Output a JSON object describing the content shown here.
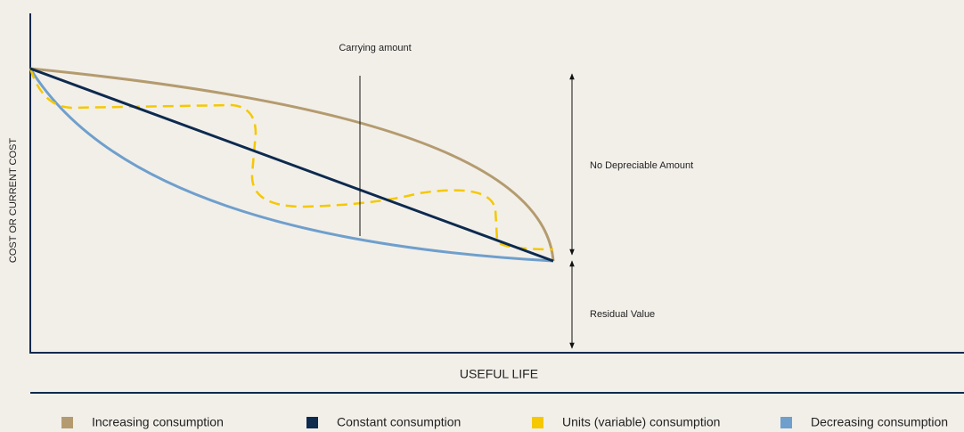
{
  "axes": {
    "y_label": "COST OR CURRENT COST",
    "x_label": "USEFUL LIFE"
  },
  "annotations": {
    "carrying": "Carrying amount",
    "depreciable": "No Depreciable Amount",
    "residual": "Residual Value"
  },
  "legend": [
    {
      "name": "Increasing consumption",
      "color": "#b49b6f"
    },
    {
      "name": "Constant consumption",
      "color": "#0d2a4f"
    },
    {
      "name": "Units (variable) consumption",
      "color": "#f5c800"
    },
    {
      "name": "Decreasing consumption",
      "color": "#6f9fcc"
    }
  ]
}
